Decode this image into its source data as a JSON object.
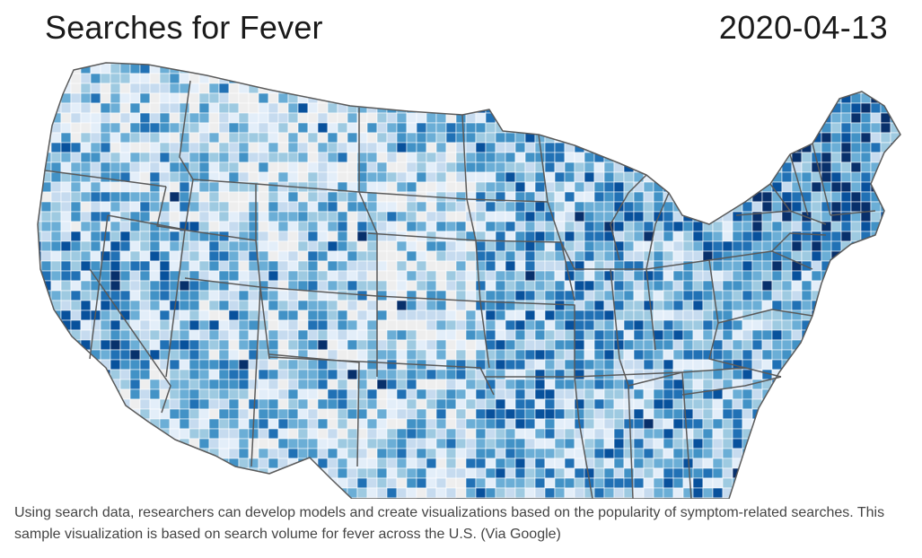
{
  "figure": {
    "title": "Searches for Fever",
    "date": "2020-04-13"
  },
  "map": {
    "region": "Contiguous United States",
    "unit": "counties",
    "metric": "search volume for fever",
    "palette": [
      "#eeeeee",
      "#e3eef9",
      "#c6dbef",
      "#9ecae1",
      "#6baed6",
      "#4292c6",
      "#2171b5",
      "#08519c",
      "#08306b"
    ],
    "border_color": "#ffffff",
    "state_border_color": "#5a5a5a",
    "background": "#ffffff"
  },
  "caption": "Using search data, researchers can develop models and create visualizations based on the popularity of symptom-related searches. This sample visualization is based on search volume for fever across the U.S. (Via Google)"
}
